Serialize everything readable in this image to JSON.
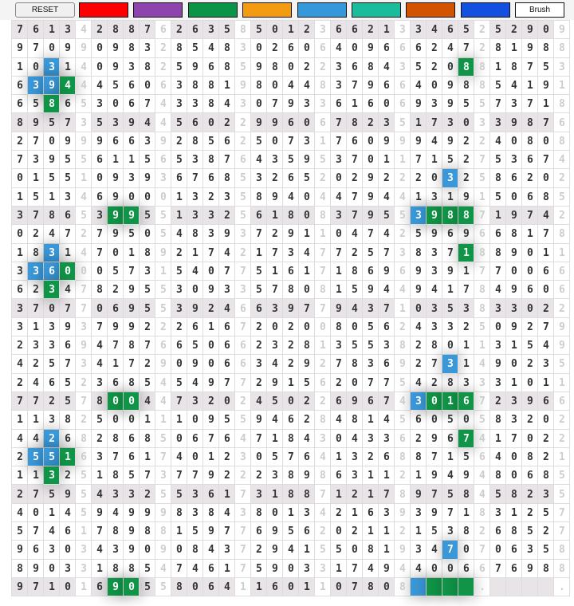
{
  "toolbar": {
    "reset_label": "RESET",
    "brush_label": "Brush",
    "swatches": [
      "#ff0000",
      "#8e44ad",
      "#0a9447",
      "#f39c12",
      "#3498db",
      "#1abc9c",
      "#d35400",
      "#1450e0"
    ]
  },
  "colors": {
    "blue": "#3a98d8",
    "green": "#109447",
    "shade": "#e8e4e8"
  },
  "grid": {
    "rows": [
      "7613 4 2887 6 2635 8 5012 3 6621 3 3465 2 5290 9",
      "9709 9 0983 2 8548 3 0260 6 4096 6 6247 2 8198 8",
      "1031 4 0938 2 5968 5 9802 2 3684 3 5208 8 1875 3",
      "6394 4 4560 6 3881 9 8044 8 3796 6 4098 8 5419 1",
      "6586 5 3067 4 3384 3 0793 3 6160 6 9395 5 7371 8",
      "8957 3 5394 4 5602 2 9960 6 7823 5 1730 3 3987 6",
      "2709 9 9663 9 2856 2 5073 1 7609 9 9492 2 4080 8",
      "7395 5 6115 6 5387 6 4359 5 3701 1 7152 7 5367 4",
      "0155 1 0939 3 6768 5 3265 2 0292 2 2032 5 8620 2",
      "1513 4 6900 0 1323 5 8940 4 4794 4 1319 1 5068 5",
      "3786 5 3995 5 1332 5 6180 8 3795 5 3988 7 1974 2",
      "0247 2 7950 5 4839 3 7291 1 0474 2 5969 6 6817 8",
      "1831 4 7018 9 2174 2 1734 7 7257 3 8371 8 8901 1",
      "3360 0 0573 1 5407 7 5161 7 1869 6 9391 7 7006 6",
      "6234 7 8295 5 3093 3 5780 8 1594 4 9417 8 4960 6",
      "3707 7 0695 5 3924 6 6397 7 9437 1 0353 8 3302 2",
      "3139 3 7992 2 2616 7 2020 0 8056 2 4332 5 0927 9",
      "2336 9 4787 6 6506 6 2328 1 3553 8 2801 1 3154 9",
      "4257 3 4172 9 0906 6 3429 2 7836 9 2731 4 9023 5",
      "2465 2 3685 4 5497 7 2915 6 2077 5 4283 3 3101 1",
      "7725 7 8004 4 7320 2 4502 2 6967 4 3016 7 2396 6",
      "1138 2 5001 1 1095 5 9462 8 4814 5 6050 5 8320 2",
      "4426 8 2868 5 0676 4 7184 3 0433 6 2967 4 1702 2",
      "2551 6 3761 7 4012 3 0576 4 1326 8 8715 6 4082 1",
      "1132 5 1857 3 7792 2 2389 8 6311 2 1949 4 8068 5",
      "2759 5 4332 5 5361 7 3188 7 1217 8 9758 4 5823 5",
      "4014 5 9499 9 8384 3 8013 4 2163 9 3971 8 3125 7",
      "5746 1 7898 8 1597 7 6956 2 0211 2 1538 2 6852 7",
      "9630 3 4390 9 0843 7 2941 5 5081 9 3470 7 0635 8",
      "8903 3 1885 4 7461 7 5903 3 1749 4 4006 6 7698 8",
      "9710 1 6905 5 8064 1 1601 1 0780 8 ____ . ____ ."
    ],
    "highlights": [
      [
        2,
        2,
        "blue"
      ],
      [
        2,
        28,
        "green"
      ],
      [
        3,
        1,
        "blue"
      ],
      [
        3,
        2,
        "blue"
      ],
      [
        3,
        3,
        "green"
      ],
      [
        4,
        2,
        "green"
      ],
      [
        8,
        27,
        "blue"
      ],
      [
        10,
        6,
        "green"
      ],
      [
        10,
        7,
        "green"
      ],
      [
        10,
        25,
        "blue"
      ],
      [
        10,
        26,
        "green"
      ],
      [
        10,
        27,
        "green"
      ],
      [
        10,
        28,
        "green"
      ],
      [
        12,
        2,
        "blue"
      ],
      [
        12,
        28,
        "green"
      ],
      [
        13,
        1,
        "blue"
      ],
      [
        13,
        2,
        "blue"
      ],
      [
        13,
        3,
        "green"
      ],
      [
        14,
        2,
        "green"
      ],
      [
        18,
        27,
        "blue"
      ],
      [
        20,
        6,
        "green"
      ],
      [
        20,
        7,
        "green"
      ],
      [
        20,
        25,
        "blue"
      ],
      [
        20,
        26,
        "green"
      ],
      [
        20,
        27,
        "green"
      ],
      [
        20,
        28,
        "green"
      ],
      [
        22,
        2,
        "blue"
      ],
      [
        22,
        28,
        "green"
      ],
      [
        23,
        1,
        "blue"
      ],
      [
        23,
        2,
        "blue"
      ],
      [
        23,
        3,
        "green"
      ],
      [
        24,
        2,
        "green"
      ],
      [
        28,
        27,
        "blue"
      ],
      [
        30,
        6,
        "green"
      ],
      [
        30,
        7,
        "green"
      ],
      [
        30,
        25,
        "blue"
      ],
      [
        30,
        26,
        "green"
      ],
      [
        30,
        27,
        "green"
      ],
      [
        30,
        28,
        "green"
      ]
    ]
  }
}
